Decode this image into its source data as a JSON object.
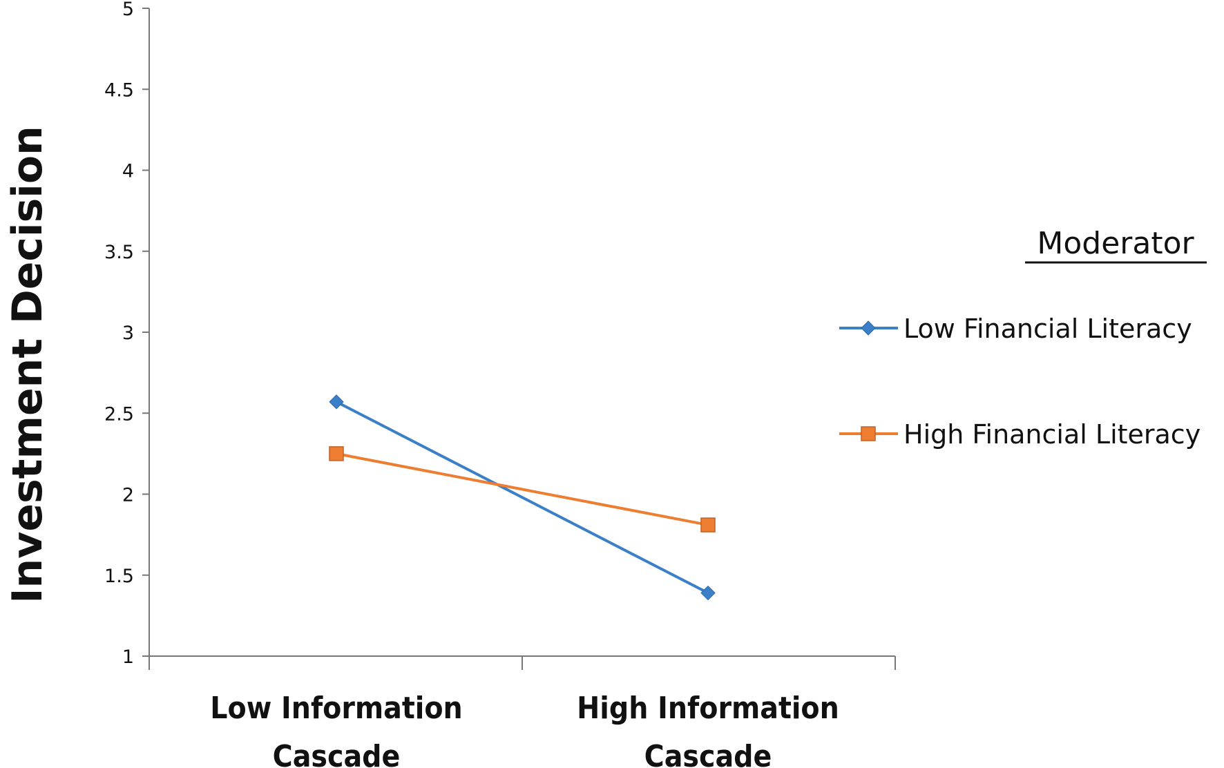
{
  "chart_data": {
    "type": "line",
    "title": "",
    "xlabel": "",
    "ylabel": "Investment Decision",
    "ylim": [
      1,
      5
    ],
    "yticks": [
      "1",
      "1.5",
      "2",
      "2.5",
      "3",
      "3.5",
      "4",
      "4.5",
      "5"
    ],
    "categories": [
      "Low Information Cascade",
      "High Information Cascade"
    ],
    "category_lines": [
      [
        "Low Information",
        "Cascade"
      ],
      [
        "High Information",
        "Cascade"
      ]
    ],
    "grid": false,
    "legend_position": "right",
    "legend_title": "Moderator",
    "series": [
      {
        "name": "Low Financial Literacy",
        "marker": "diamond",
        "color": "#3a7fc8",
        "values": [
          2.57,
          1.39
        ]
      },
      {
        "name": "High Financial Literacy",
        "marker": "square",
        "color": "#ed7d31",
        "values": [
          2.25,
          1.81
        ]
      }
    ]
  }
}
